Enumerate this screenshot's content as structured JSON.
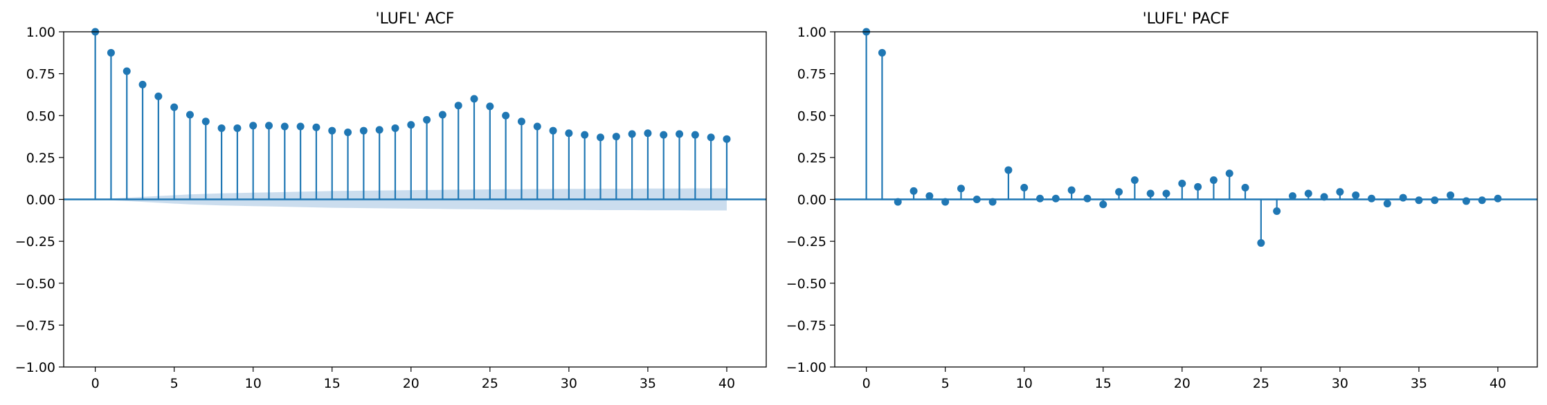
{
  "chart_data": [
    {
      "type": "stem",
      "title": "'LUFL' ACF",
      "xlabel": "",
      "ylabel": "",
      "xlim": [
        -2,
        42.5
      ],
      "ylim": [
        -1.0,
        1.0
      ],
      "xticks": [
        "0",
        "5",
        "10",
        "15",
        "20",
        "25",
        "30",
        "35",
        "40"
      ],
      "yticks": [
        "−1.00",
        "−0.75",
        "−0.50",
        "−0.25",
        "0.00",
        "0.25",
        "0.50",
        "0.75",
        "1.00"
      ],
      "grid": false,
      "color": "#1f77b4",
      "band_color": "#c5d9ec",
      "lags": [
        0,
        1,
        2,
        3,
        4,
        5,
        6,
        7,
        8,
        9,
        10,
        11,
        12,
        13,
        14,
        15,
        16,
        17,
        18,
        19,
        20,
        21,
        22,
        23,
        24,
        25,
        26,
        27,
        28,
        29,
        30,
        31,
        32,
        33,
        34,
        35,
        36,
        37,
        38,
        39,
        40
      ],
      "values": [
        1.0,
        0.875,
        0.765,
        0.685,
        0.615,
        0.55,
        0.505,
        0.465,
        0.425,
        0.425,
        0.44,
        0.44,
        0.435,
        0.435,
        0.43,
        0.41,
        0.4,
        0.41,
        0.415,
        0.425,
        0.445,
        0.475,
        0.505,
        0.56,
        0.6,
        0.555,
        0.5,
        0.465,
        0.435,
        0.41,
        0.395,
        0.385,
        0.37,
        0.375,
        0.39,
        0.395,
        0.385,
        0.39,
        0.385,
        0.37,
        0.36
      ],
      "confint": [
        0,
        0.005,
        0.01,
        0.015,
        0.02,
        0.025,
        0.03,
        0.033,
        0.036,
        0.038,
        0.04,
        0.042,
        0.044,
        0.046,
        0.048,
        0.05,
        0.051,
        0.052,
        0.053,
        0.054,
        0.055,
        0.056,
        0.057,
        0.058,
        0.059,
        0.06,
        0.061,
        0.061,
        0.062,
        0.062,
        0.063,
        0.063,
        0.064,
        0.064,
        0.064,
        0.065,
        0.065,
        0.065,
        0.066,
        0.066,
        0.066
      ]
    },
    {
      "type": "stem",
      "title": "'LUFL' PACF",
      "xlabel": "",
      "ylabel": "",
      "xlim": [
        -2,
        42.5
      ],
      "ylim": [
        -1.0,
        1.0
      ],
      "xticks": [
        "0",
        "5",
        "10",
        "15",
        "20",
        "25",
        "30",
        "35",
        "40"
      ],
      "yticks": [
        "−1.00",
        "−0.75",
        "−0.50",
        "−0.25",
        "0.00",
        "0.25",
        "0.50",
        "0.75",
        "1.00"
      ],
      "grid": false,
      "color": "#1f77b4",
      "band_color": "#c5d9ec",
      "lags": [
        0,
        1,
        2,
        3,
        4,
        5,
        6,
        7,
        8,
        9,
        10,
        11,
        12,
        13,
        14,
        15,
        16,
        17,
        18,
        19,
        20,
        21,
        22,
        23,
        24,
        25,
        26,
        27,
        28,
        29,
        30,
        31,
        32,
        33,
        34,
        35,
        36,
        37,
        38,
        39,
        40
      ],
      "values": [
        1.0,
        0.875,
        -0.015,
        0.05,
        0.02,
        -0.015,
        0.065,
        0.0,
        -0.015,
        0.175,
        0.07,
        0.005,
        0.005,
        0.055,
        0.005,
        -0.03,
        0.045,
        0.115,
        0.035,
        0.035,
        0.095,
        0.075,
        0.115,
        0.155,
        0.07,
        -0.26,
        -0.07,
        0.02,
        0.035,
        0.015,
        0.045,
        0.025,
        0.005,
        -0.025,
        0.01,
        -0.005,
        -0.005,
        0.025,
        -0.01,
        -0.005,
        0.005
      ],
      "confint": [
        0,
        0.005,
        0.005,
        0.005,
        0.005,
        0.005,
        0.005,
        0.005,
        0.005,
        0.005,
        0.005,
        0.005,
        0.005,
        0.005,
        0.005,
        0.005,
        0.005,
        0.005,
        0.005,
        0.005,
        0.005,
        0.005,
        0.005,
        0.005,
        0.005,
        0.005,
        0.005,
        0.005,
        0.005,
        0.005,
        0.005,
        0.005,
        0.005,
        0.005,
        0.005,
        0.005,
        0.005,
        0.005,
        0.005,
        0.005,
        0.005
      ]
    }
  ]
}
